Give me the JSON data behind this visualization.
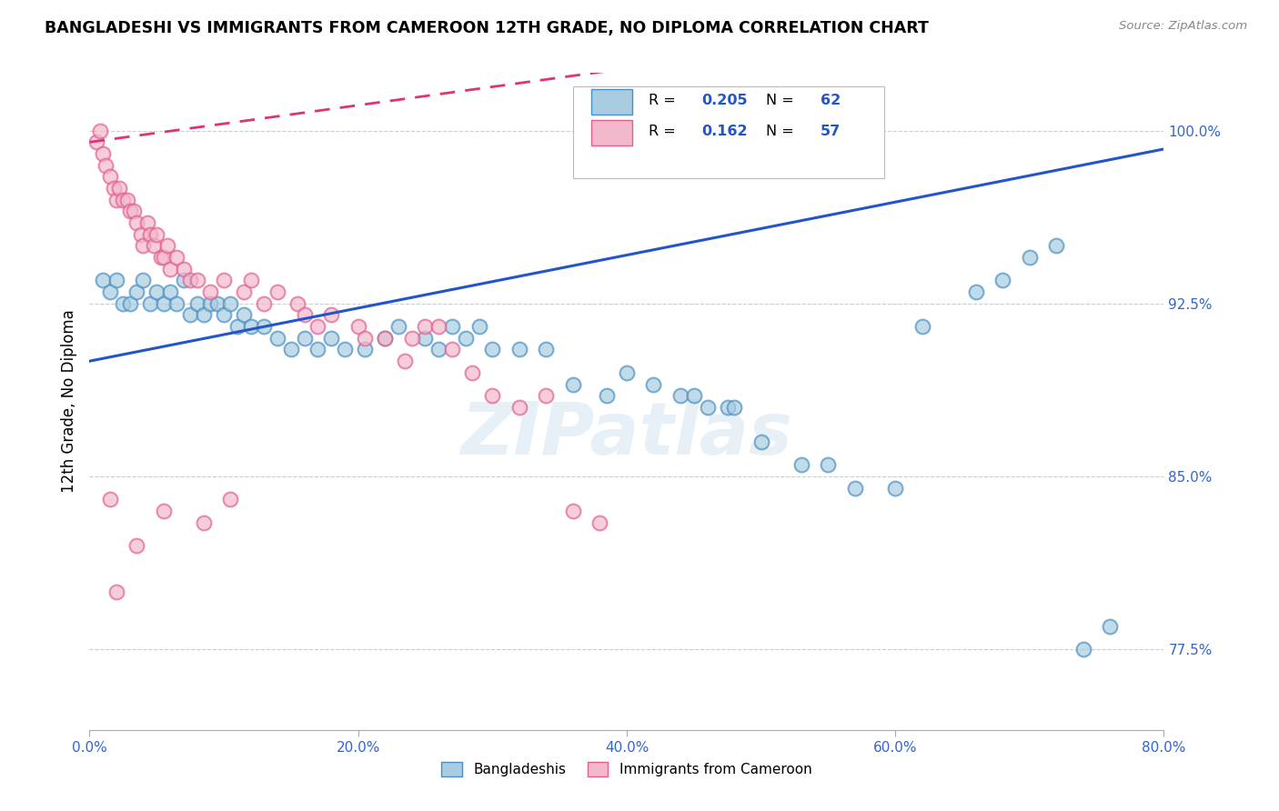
{
  "title": "BANGLADESHI VS IMMIGRANTS FROM CAMEROON 12TH GRADE, NO DIPLOMA CORRELATION CHART",
  "source": "Source: ZipAtlas.com",
  "ylabel": "12th Grade, No Diploma",
  "x_tick_labels": [
    "0.0%",
    "20.0%",
    "40.0%",
    "60.0%",
    "80.0%"
  ],
  "x_tick_values": [
    0.0,
    20.0,
    40.0,
    60.0,
    80.0
  ],
  "y_tick_labels": [
    "100.0%",
    "92.5%",
    "85.0%",
    "77.5%"
  ],
  "y_tick_values": [
    100.0,
    92.5,
    85.0,
    77.5
  ],
  "xlim": [
    0.0,
    80.0
  ],
  "ylim": [
    74.0,
    102.5
  ],
  "legend_r_blue_val": "0.205",
  "legend_n_blue_val": "62",
  "legend_r_pink_val": "0.162",
  "legend_n_pink_val": "57",
  "blue_fill": "#a8cce0",
  "blue_edge": "#4a90c4",
  "pink_fill": "#f4b8cc",
  "pink_edge": "#e06090",
  "blue_line_color": "#2255cc",
  "pink_line_color": "#dd3377",
  "watermark_text": "ZIPatlas",
  "blue_scatter_x": [
    1.0,
    1.5,
    2.0,
    2.5,
    3.0,
    3.5,
    4.0,
    4.5,
    5.0,
    5.5,
    6.0,
    6.5,
    7.0,
    7.5,
    8.0,
    8.5,
    9.0,
    9.5,
    10.0,
    10.5,
    11.0,
    11.5,
    12.0,
    13.0,
    14.0,
    15.0,
    16.0,
    17.0,
    18.0,
    19.0,
    20.5,
    22.0,
    23.0,
    25.0,
    26.0,
    27.0,
    28.0,
    29.0,
    30.0,
    32.0,
    34.0,
    36.0,
    38.5,
    40.0,
    42.0,
    44.0,
    45.0,
    46.0,
    47.5,
    48.0,
    50.0,
    53.0,
    55.0,
    57.0,
    60.0,
    62.0,
    66.0,
    68.0,
    70.0,
    72.0,
    74.0,
    76.0
  ],
  "blue_scatter_y": [
    93.5,
    93.0,
    93.5,
    92.5,
    92.5,
    93.0,
    93.5,
    92.5,
    93.0,
    92.5,
    93.0,
    92.5,
    93.5,
    92.0,
    92.5,
    92.0,
    92.5,
    92.5,
    92.0,
    92.5,
    91.5,
    92.0,
    91.5,
    91.5,
    91.0,
    90.5,
    91.0,
    90.5,
    91.0,
    90.5,
    90.5,
    91.0,
    91.5,
    91.0,
    90.5,
    91.5,
    91.0,
    91.5,
    90.5,
    90.5,
    90.5,
    89.0,
    88.5,
    89.5,
    89.0,
    88.5,
    88.5,
    88.0,
    88.0,
    88.0,
    86.5,
    85.5,
    85.5,
    84.5,
    84.5,
    91.5,
    93.0,
    93.5,
    94.5,
    95.0,
    77.5,
    78.5
  ],
  "pink_scatter_x": [
    0.5,
    0.8,
    1.0,
    1.2,
    1.5,
    1.8,
    2.0,
    2.2,
    2.5,
    2.8,
    3.0,
    3.3,
    3.5,
    3.8,
    4.0,
    4.3,
    4.5,
    4.8,
    5.0,
    5.3,
    5.5,
    5.8,
    6.0,
    6.5,
    7.0,
    7.5,
    8.0,
    9.0,
    10.0,
    11.5,
    13.0,
    14.0,
    15.5,
    17.0,
    18.0,
    20.0,
    22.0,
    24.0,
    25.0,
    27.0,
    28.5,
    30.0,
    32.0,
    34.0,
    36.0,
    38.0,
    12.0,
    16.0,
    20.5,
    23.5,
    26.0,
    5.5,
    8.5,
    10.5,
    3.5,
    2.0,
    1.5
  ],
  "pink_scatter_y": [
    99.5,
    100.0,
    99.0,
    98.5,
    98.0,
    97.5,
    97.0,
    97.5,
    97.0,
    97.0,
    96.5,
    96.5,
    96.0,
    95.5,
    95.0,
    96.0,
    95.5,
    95.0,
    95.5,
    94.5,
    94.5,
    95.0,
    94.0,
    94.5,
    94.0,
    93.5,
    93.5,
    93.0,
    93.5,
    93.0,
    92.5,
    93.0,
    92.5,
    91.5,
    92.0,
    91.5,
    91.0,
    91.0,
    91.5,
    90.5,
    89.5,
    88.5,
    88.0,
    88.5,
    83.5,
    83.0,
    93.5,
    92.0,
    91.0,
    90.0,
    91.5,
    83.5,
    83.0,
    84.0,
    82.0,
    80.0,
    84.0
  ]
}
